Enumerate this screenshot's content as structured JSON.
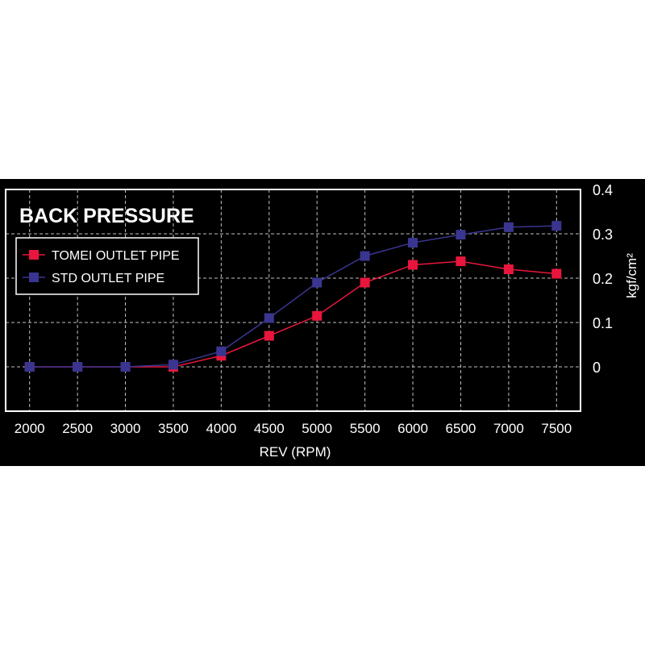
{
  "chart_data": {
    "type": "line",
    "title": "BACK PRESSURE",
    "xlabel": "REV (RPM)",
    "ylabel": "kgf/cm²",
    "x": [
      2000,
      2500,
      3000,
      3500,
      4000,
      4500,
      5000,
      5500,
      6000,
      6500,
      7000,
      7500
    ],
    "x_tick_labels": [
      "2000",
      "2500",
      "3000",
      "3500",
      "4000",
      "4500",
      "5000",
      "5500",
      "6000",
      "6500",
      "7000",
      "7500"
    ],
    "y_ticks": [
      0,
      0.1,
      0.2,
      0.3,
      0.4
    ],
    "y_tick_labels": [
      "0",
      "0.1",
      "0.2",
      "0.3",
      "0.4"
    ],
    "ylim": [
      -0.1,
      0.4
    ],
    "xlim": [
      1750,
      7750
    ],
    "grid": true,
    "legend_position": "top-left",
    "series": [
      {
        "name": "TOMEI OUTLET PIPE",
        "color": "#e8163c",
        "values": [
          0,
          0,
          0,
          0,
          0.025,
          0.07,
          0.115,
          0.19,
          0.23,
          0.238,
          0.22,
          0.21
        ]
      },
      {
        "name": "STD OUTLET PIPE",
        "color": "#3a3590",
        "values": [
          0,
          0,
          0,
          0.005,
          0.035,
          0.11,
          0.19,
          0.25,
          0.28,
          0.298,
          0.315,
          0.318
        ]
      }
    ]
  },
  "colors": {
    "background": "#000000",
    "grid": "#bfbfbf",
    "frame": "#ffffff",
    "text": "#ffffff"
  }
}
